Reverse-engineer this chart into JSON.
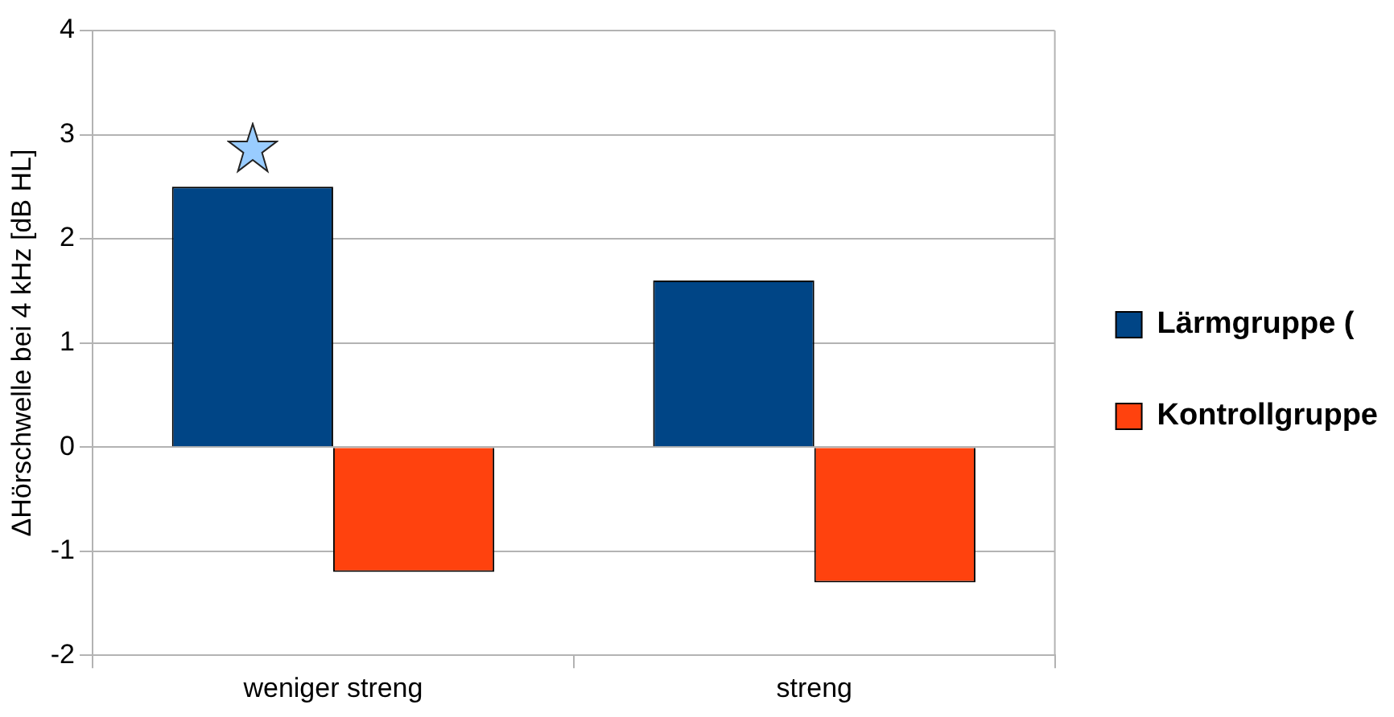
{
  "chart_data": {
    "type": "bar",
    "ylabel": "ΔHörschwelle bei 4 kHz [dB HL]",
    "categories": [
      "weniger streng",
      "streng"
    ],
    "series": [
      {
        "name": "Lärmgruppe (",
        "color": "#004586",
        "values": [
          2.5,
          1.6
        ]
      },
      {
        "name": "Kontrollgruppe",
        "color": "#ff420e",
        "values": [
          -1.2,
          -1.3
        ]
      }
    ],
    "ylim": [
      -2,
      4
    ],
    "yticks": [
      -2,
      -1,
      0,
      1,
      2,
      3,
      4
    ],
    "grid": "y",
    "legend": "right"
  }
}
